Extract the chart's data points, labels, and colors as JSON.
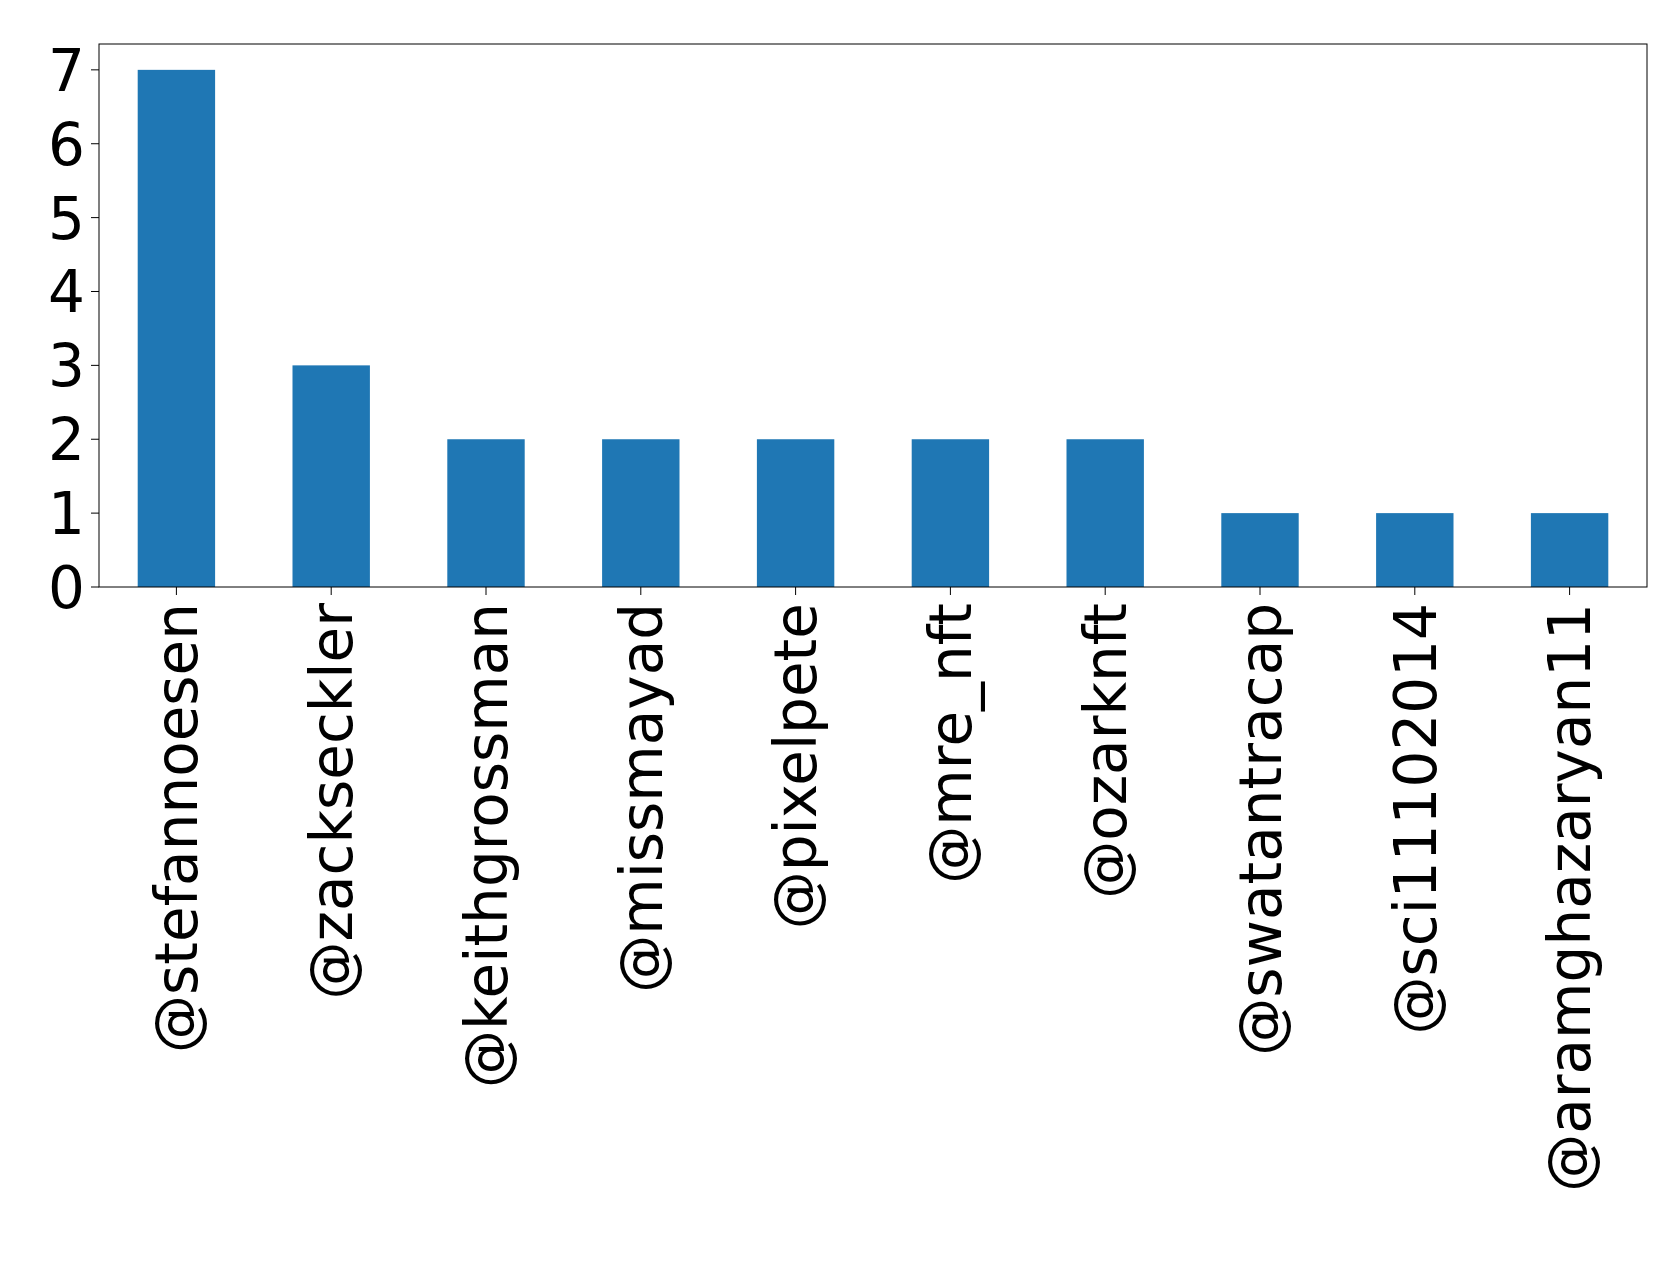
{
  "chart_data": {
    "type": "bar",
    "categories": [
      "@stefannoesen",
      "@zackseckler",
      "@keithgrossman",
      "@missmayad",
      "@pixelpete",
      "@mre_nft",
      "@ozarknft",
      "@swatantracap",
      "@sci11102014",
      "@aramghazaryan11"
    ],
    "values": [
      7,
      3,
      2,
      2,
      2,
      2,
      2,
      1,
      1,
      1
    ],
    "color": "#1f77b4",
    "ylim": [
      0,
      7.35
    ],
    "yticks": [
      0,
      1,
      2,
      3,
      4,
      5,
      6,
      7
    ],
    "grid": false
  }
}
